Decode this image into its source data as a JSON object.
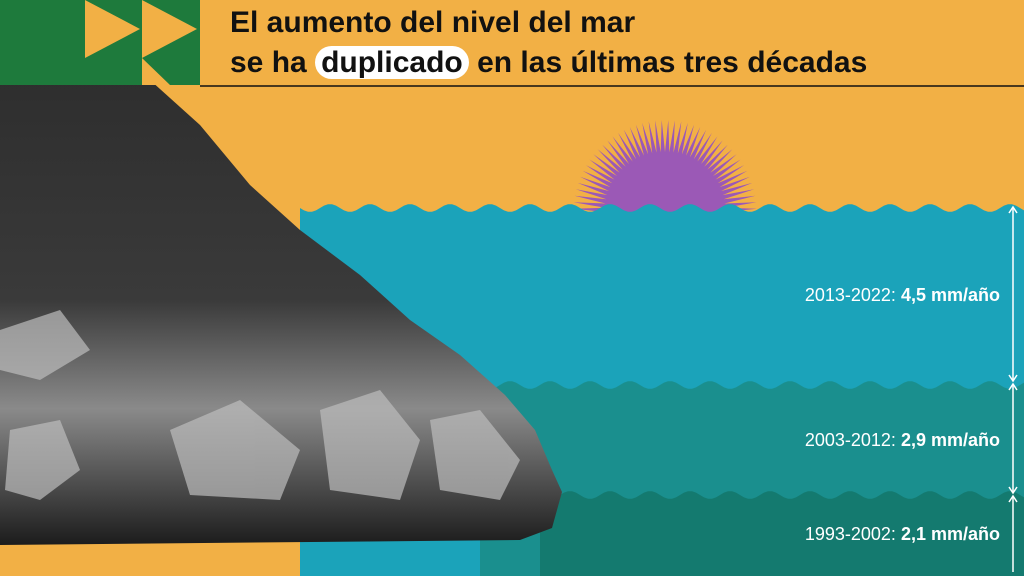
{
  "header": {
    "title_line1": "El aumento del nivel del mar",
    "title_line2_before": "se ha",
    "title_highlight": "duplicado",
    "title_line2_after": "en las últimas tres décadas"
  },
  "periods": [
    {
      "range": "2013-2022:",
      "rate": "4,5 mm/año"
    },
    {
      "range": "2003-2012:",
      "rate": "2,9 mm/año"
    },
    {
      "range": "1993-2002:",
      "rate": "2,1 mm/año"
    }
  ]
}
